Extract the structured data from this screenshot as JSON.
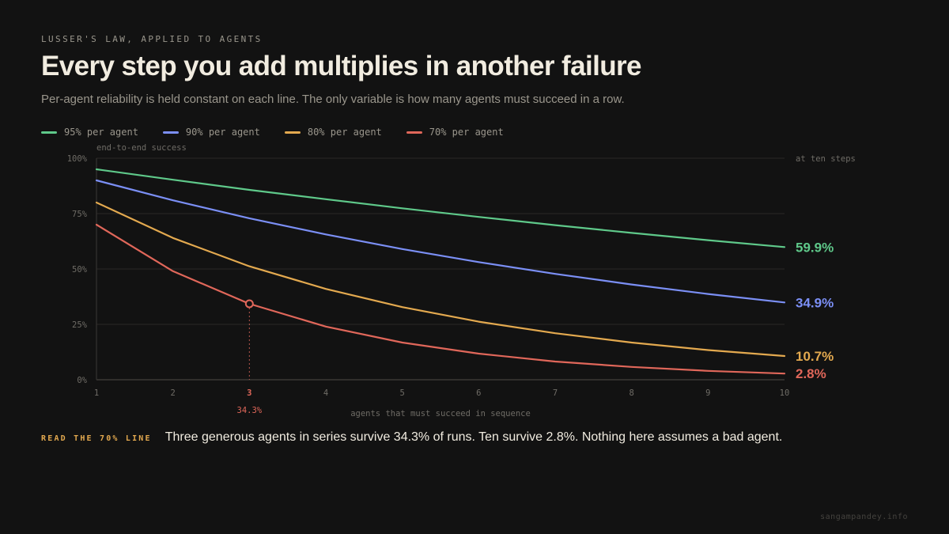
{
  "header": {
    "kicker": "LUSSER'S LAW, APPLIED TO AGENTS",
    "title": "Every step you add multiplies in another failure",
    "subtitle": "Per-agent reliability is held constant on each line. The only variable is how many agents must succeed in a row."
  },
  "chart_data": {
    "type": "line",
    "title": "",
    "ylabel": "end-to-end success",
    "xlabel": "agents that must succeed in sequence",
    "x": [
      1,
      2,
      3,
      4,
      5,
      6,
      7,
      8,
      9,
      10
    ],
    "xlim": [
      1,
      10
    ],
    "ylim": [
      0,
      100
    ],
    "y_ticks": [
      "0%",
      "25%",
      "50%",
      "75%",
      "100%"
    ],
    "y_tick_values": [
      0,
      25,
      50,
      75,
      100
    ],
    "grid": true,
    "legend_position": "top-left",
    "end_label_heading": "at ten steps",
    "series": [
      {
        "name": "95% per agent",
        "color": "#5fc98a",
        "end_label": "59.9%",
        "values": [
          95.0,
          90.3,
          85.7,
          81.5,
          77.4,
          73.5,
          69.8,
          66.3,
          63.0,
          59.9
        ]
      },
      {
        "name": "90% per agent",
        "color": "#7b8ff5",
        "end_label": "34.9%",
        "values": [
          90.0,
          81.0,
          72.9,
          65.6,
          59.0,
          53.1,
          47.8,
          43.0,
          38.7,
          34.9
        ]
      },
      {
        "name": "80% per agent",
        "color": "#e3a94f",
        "end_label": "10.7%",
        "values": [
          80.0,
          64.0,
          51.2,
          41.0,
          32.8,
          26.2,
          21.0,
          16.8,
          13.4,
          10.7
        ]
      },
      {
        "name": "70% per agent",
        "color": "#e0675a",
        "end_label": "2.8%",
        "values": [
          70.0,
          49.0,
          34.3,
          24.0,
          16.8,
          11.8,
          8.2,
          5.8,
          4.0,
          2.8
        ]
      }
    ],
    "highlight": {
      "series_index": 3,
      "x": 3,
      "y": 34.3,
      "label": "34.3%"
    }
  },
  "callout": {
    "label": "READ THE 70% LINE",
    "text": "Three generous agents in series survive 34.3% of runs. Ten survive 2.8%. Nothing here assumes a bad agent."
  },
  "footer": {
    "credit": "sangampandey.info"
  },
  "colors": {
    "background": "#121212",
    "text": "#f1ece0",
    "muted": "#9a968c",
    "grid": "#2a2826",
    "axis": "#3a3835"
  }
}
